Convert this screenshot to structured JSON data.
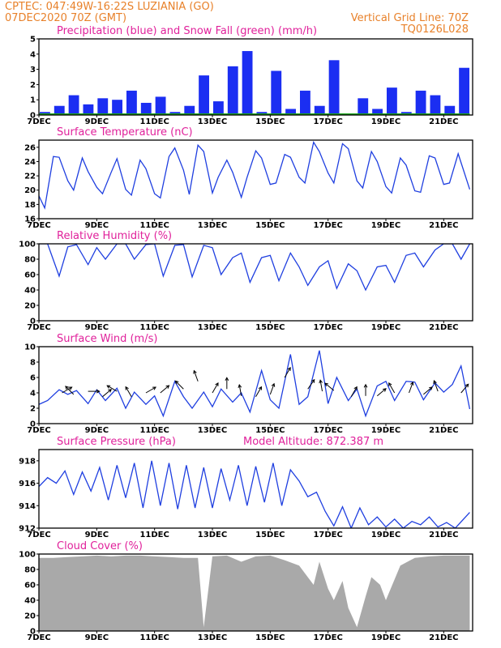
{
  "header": {
    "station": "CPTEC:    047:49W-16:22S    LUZIANIA (GO)",
    "run": "07DEC2020 70Z (GMT)",
    "grid_note": "Vertical Grid Line: 70Z",
    "code": "TQ0126L028"
  },
  "x_labels": [
    "7DEC",
    "9DEC",
    "11DEC",
    "13DEC",
    "15DEC",
    "17DEC",
    "19DEC",
    "21DEC"
  ],
  "colors": {
    "header": "#e8812a",
    "titles": "#e0219b",
    "line": "#1f3fe0",
    "precip": "#1b2ef2",
    "snow": "#1aa51a",
    "cloud": "#a9a9a9",
    "arrow": "#000000"
  },
  "chart_data": [
    {
      "type": "bar",
      "title": "Precipitation (blue) and Snow Fall (green) (mm/h)",
      "ylim": [
        0,
        5
      ],
      "yticks": [
        "0",
        "1",
        "2",
        "3",
        "4",
        "5"
      ],
      "series": [
        {
          "name": "Precipitation",
          "days": [
            0.0,
            0.5,
            1.0,
            1.5,
            2.0,
            2.5,
            3.0,
            3.5,
            4.0,
            4.5,
            5.0,
            5.5,
            6.0,
            6.5,
            7.0,
            7.5,
            8.0,
            8.5,
            9.0,
            9.5,
            10.0,
            10.5,
            11.0,
            11.5,
            12.0,
            12.5,
            13.0,
            13.5,
            14.0,
            14.5
          ],
          "values": [
            0.2,
            0.6,
            1.3,
            0.7,
            1.1,
            1.0,
            1.6,
            0.8,
            1.2,
            0.2,
            0.6,
            2.6,
            0.9,
            3.2,
            4.2,
            0.2,
            2.9,
            0.4,
            1.6,
            0.6,
            3.6,
            0.1,
            1.1,
            0.4,
            1.8,
            0.2,
            1.6,
            1.3,
            0.6,
            3.1
          ]
        },
        {
          "name": "Snow Fall",
          "days": [
            0.0,
            14.9
          ],
          "values": [
            0,
            0
          ]
        }
      ]
    },
    {
      "type": "line",
      "title": "Surface Temperature (nC)",
      "ylim": [
        16,
        27
      ],
      "yticks": [
        "16",
        "18",
        "20",
        "22",
        "24",
        "26"
      ],
      "x_days": [
        0.0,
        0.2,
        0.5,
        0.7,
        1.0,
        1.2,
        1.5,
        1.7,
        2.0,
        2.2,
        2.5,
        2.7,
        3.0,
        3.2,
        3.5,
        3.7,
        4.0,
        4.2,
        4.5,
        4.7,
        5.0,
        5.2,
        5.5,
        5.7,
        6.0,
        6.2,
        6.5,
        6.7,
        7.0,
        7.2,
        7.5,
        7.7,
        8.0,
        8.2,
        8.5,
        8.7,
        9.0,
        9.2,
        9.5,
        9.7,
        10.0,
        10.2,
        10.5,
        10.7,
        11.0,
        11.2,
        11.5,
        11.7,
        12.0,
        12.2,
        12.5,
        12.7,
        13.0,
        13.2,
        13.5,
        13.7,
        14.0,
        14.2,
        14.5,
        14.9
      ],
      "values": [
        19.2,
        17.5,
        24.7,
        24.6,
        21.3,
        20.0,
        24.5,
        22.6,
        20.4,
        19.5,
        22.5,
        24.4,
        20.1,
        19.3,
        24.2,
        23.0,
        19.5,
        18.9,
        24.7,
        25.9,
        22.8,
        19.4,
        26.3,
        25.4,
        19.6,
        21.8,
        24.2,
        22.5,
        19.0,
        21.8,
        25.5,
        24.5,
        20.8,
        21.0,
        25.0,
        24.6,
        21.8,
        21.0,
        26.7,
        25.4,
        22.4,
        21.0,
        26.5,
        25.8,
        21.3,
        20.3,
        25.4,
        24.0,
        20.5,
        19.6,
        24.5,
        23.5,
        19.9,
        19.7,
        24.8,
        24.5,
        20.8,
        21.0,
        25.1,
        20.1
      ]
    },
    {
      "type": "line",
      "title": "Relative Humidity (%)",
      "ylim": [
        0,
        100
      ],
      "yticks": [
        "0",
        "20",
        "40",
        "60",
        "80",
        "100"
      ],
      "x_days": [
        0.0,
        0.3,
        0.7,
        1.0,
        1.3,
        1.7,
        2.0,
        2.3,
        2.7,
        3.0,
        3.3,
        3.7,
        4.0,
        4.3,
        4.7,
        5.0,
        5.3,
        5.7,
        6.0,
        6.3,
        6.7,
        7.0,
        7.3,
        7.7,
        8.0,
        8.3,
        8.7,
        9.0,
        9.3,
        9.7,
        10.0,
        10.3,
        10.7,
        11.0,
        11.3,
        11.7,
        12.0,
        12.3,
        12.7,
        13.0,
        13.3,
        13.7,
        14.0,
        14.3,
        14.6,
        14.9
      ],
      "values": [
        100,
        100,
        58,
        96,
        99,
        73,
        95,
        80,
        100,
        100,
        80,
        99,
        100,
        58,
        98,
        99,
        57,
        98,
        95,
        60,
        82,
        88,
        50,
        82,
        85,
        52,
        88,
        70,
        46,
        70,
        78,
        42,
        74,
        65,
        40,
        70,
        72,
        50,
        85,
        88,
        70,
        92,
        100,
        100,
        80,
        100
      ]
    },
    {
      "type": "line",
      "title": "Surface Wind (m/s)",
      "ylim": [
        0,
        10
      ],
      "yticks": [
        "0",
        "2",
        "4",
        "6",
        "8",
        "10"
      ],
      "x_days": [
        0.0,
        0.3,
        0.7,
        1.0,
        1.3,
        1.7,
        2.0,
        2.3,
        2.7,
        3.0,
        3.3,
        3.7,
        4.0,
        4.3,
        4.7,
        5.0,
        5.3,
        5.7,
        6.0,
        6.3,
        6.7,
        7.0,
        7.3,
        7.7,
        8.0,
        8.3,
        8.7,
        9.0,
        9.3,
        9.7,
        10.0,
        10.3,
        10.7,
        11.0,
        11.3,
        11.7,
        12.0,
        12.3,
        12.7,
        13.0,
        13.3,
        13.7,
        14.0,
        14.3,
        14.6,
        14.9
      ],
      "values": [
        2.5,
        3.0,
        4.4,
        3.8,
        4.3,
        2.6,
        4.4,
        3.0,
        4.6,
        2.0,
        4.1,
        2.5,
        3.6,
        1.0,
        5.5,
        3.5,
        2.0,
        4.1,
        2.2,
        4.5,
        2.8,
        4.0,
        1.5,
        6.9,
        3.1,
        2.0,
        9.0,
        2.5,
        3.5,
        9.5,
        2.6,
        6.0,
        3.0,
        4.5,
        1.0,
        4.9,
        5.5,
        3.0,
        5.5,
        5.4,
        3.1,
        5.3,
        4.1,
        5.1,
        7.5,
        1.9
      ],
      "arrows": [
        {
          "day": 0.8,
          "speed": 4.0,
          "dir": 30
        },
        {
          "day": 1.2,
          "speed": 3.8,
          "dir": 135
        },
        {
          "day": 1.7,
          "speed": 4.2,
          "dir": 0
        },
        {
          "day": 2.2,
          "speed": 3.5,
          "dir": 40
        },
        {
          "day": 2.7,
          "speed": 4.2,
          "dir": 150
        },
        {
          "day": 3.2,
          "speed": 3.5,
          "dir": 120
        },
        {
          "day": 3.7,
          "speed": 4.0,
          "dir": 30
        },
        {
          "day": 4.2,
          "speed": 4.0,
          "dir": 40
        },
        {
          "day": 5.0,
          "speed": 4.5,
          "dir": 135
        },
        {
          "day": 5.5,
          "speed": 5.5,
          "dir": 110
        },
        {
          "day": 6.0,
          "speed": 4.0,
          "dir": 60
        },
        {
          "day": 6.5,
          "speed": 4.5,
          "dir": 90
        },
        {
          "day": 7.0,
          "speed": 3.6,
          "dir": 100
        },
        {
          "day": 7.5,
          "speed": 3.5,
          "dir": 60
        },
        {
          "day": 8.0,
          "speed": 3.8,
          "dir": 70
        },
        {
          "day": 8.5,
          "speed": 6.0,
          "dir": 60
        },
        {
          "day": 9.3,
          "speed": 4.5,
          "dir": 55
        },
        {
          "day": 9.8,
          "speed": 4.2,
          "dir": 100
        },
        {
          "day": 10.2,
          "speed": 4.3,
          "dir": 140
        },
        {
          "day": 10.8,
          "speed": 3.5,
          "dir": 60
        },
        {
          "day": 11.3,
          "speed": 3.6,
          "dir": 90
        },
        {
          "day": 11.7,
          "speed": 3.6,
          "dir": 40
        },
        {
          "day": 12.3,
          "speed": 4.0,
          "dir": 120
        },
        {
          "day": 12.8,
          "speed": 4.0,
          "dir": 70
        },
        {
          "day": 13.3,
          "speed": 3.8,
          "dir": 40
        },
        {
          "day": 13.8,
          "speed": 4.2,
          "dir": 110
        },
        {
          "day": 14.6,
          "speed": 4.0,
          "dir": 50
        }
      ]
    },
    {
      "type": "line",
      "title": "Surface Pressure (hPa)",
      "subtitle": "Model Altitude: 872.387 m",
      "ylim": [
        912,
        919
      ],
      "yticks": [
        "912",
        "914",
        "916",
        "918"
      ],
      "x_days": [
        0.0,
        0.3,
        0.6,
        0.9,
        1.2,
        1.5,
        1.8,
        2.1,
        2.4,
        2.7,
        3.0,
        3.3,
        3.6,
        3.9,
        4.2,
        4.5,
        4.8,
        5.1,
        5.4,
        5.7,
        6.0,
        6.3,
        6.6,
        6.9,
        7.2,
        7.5,
        7.8,
        8.1,
        8.4,
        8.7,
        9.0,
        9.3,
        9.6,
        9.9,
        10.2,
        10.5,
        10.8,
        11.1,
        11.4,
        11.7,
        12.0,
        12.3,
        12.6,
        12.9,
        13.2,
        13.5,
        13.8,
        14.1,
        14.4,
        14.9
      ],
      "values": [
        915.7,
        916.5,
        916.0,
        917.1,
        915.0,
        917.0,
        915.3,
        917.4,
        914.5,
        917.6,
        914.7,
        917.8,
        913.8,
        918.0,
        914.0,
        917.8,
        913.7,
        917.6,
        913.8,
        917.4,
        913.8,
        917.3,
        914.5,
        917.6,
        914.0,
        917.5,
        914.3,
        917.8,
        914.0,
        917.2,
        916.2,
        914.8,
        915.2,
        913.5,
        912.2,
        913.9,
        912.0,
        913.8,
        912.3,
        913.0,
        912.1,
        912.8,
        912.0,
        912.6,
        912.3,
        913.0,
        912.1,
        912.5,
        912.0,
        913.4
      ]
    },
    {
      "type": "area",
      "title": "Cloud Cover (%)",
      "ylim": [
        0,
        100
      ],
      "yticks": [
        "0",
        "20",
        "40",
        "60",
        "80",
        "100"
      ],
      "x_days": [
        0.0,
        0.5,
        1.0,
        1.5,
        2.0,
        2.5,
        3.0,
        3.5,
        4.0,
        4.5,
        5.0,
        5.5,
        5.7,
        6.0,
        6.5,
        7.0,
        7.5,
        8.0,
        8.5,
        9.0,
        9.5,
        9.7,
        10.0,
        10.2,
        10.5,
        10.7,
        11.0,
        11.3,
        11.5,
        11.8,
        12.0,
        12.5,
        13.0,
        13.5,
        14.0,
        14.5,
        14.9
      ],
      "values": [
        95,
        95,
        96,
        97,
        98,
        97,
        98,
        98,
        97,
        96,
        95,
        95,
        5,
        97,
        98,
        90,
        97,
        98,
        92,
        85,
        60,
        90,
        55,
        40,
        65,
        30,
        5,
        45,
        70,
        60,
        40,
        85,
        95,
        97,
        98,
        98,
        98
      ]
    }
  ]
}
